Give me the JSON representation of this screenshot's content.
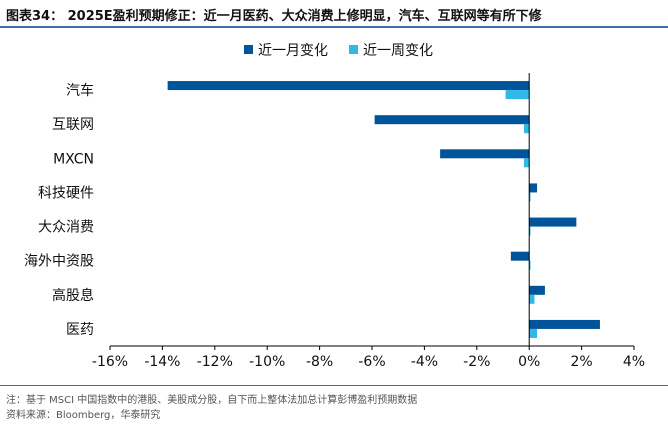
{
  "header": {
    "title": "图表34： 2025E盈利预期修正：近一月医药、大众消费上修明显，汽车、互联网等有所下修"
  },
  "footer": {
    "note": "注：基于 MSCI 中国指数中的港股、美股成分股，自下而上整体法加总计算彭博盈利预期数据",
    "source": "资料来源：Bloomberg，华泰研究"
  },
  "chart_data": {
    "type": "bar",
    "orientation": "horizontal",
    "categories": [
      "汽车",
      "互联网",
      "MXCN",
      "科技硬件",
      "大众消费",
      "海外中资股",
      "高股息",
      "医药"
    ],
    "series": [
      {
        "name": "近一月变化",
        "color": "#00549a",
        "values": [
          -13.8,
          -5.9,
          -3.4,
          0.3,
          1.8,
          -0.7,
          0.6,
          2.7
        ]
      },
      {
        "name": "近一周变化",
        "color": "#2fb8e8",
        "values": [
          -0.9,
          -0.2,
          -0.2,
          0.05,
          0.05,
          0.05,
          0.2,
          0.3
        ]
      }
    ],
    "xlim": [
      -16,
      4
    ],
    "xticks": [
      "-16%",
      "-14%",
      "-12%",
      "-10%",
      "-8%",
      "-6%",
      "-4%",
      "-2%",
      "0%",
      "2%",
      "4%"
    ],
    "xtick_values": [
      -16,
      -14,
      -12,
      -10,
      -8,
      -6,
      -4,
      -2,
      0,
      2,
      4
    ],
    "legend_position": "top-right",
    "grid": false
  }
}
